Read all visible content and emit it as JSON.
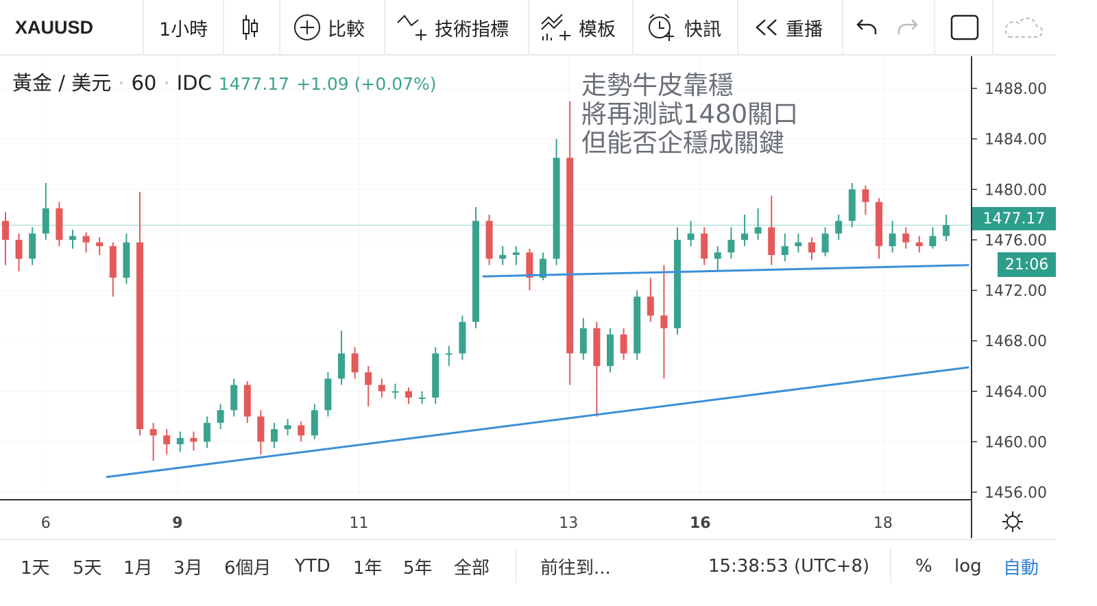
{
  "toolbar": {
    "symbol": "XAUUSD",
    "interval": "1小時",
    "chart_type_icon": "candlestick-icon",
    "compare": "比較",
    "indicators": "技術指標",
    "templates": "模板",
    "alerts": "快訊",
    "replay": "重播"
  },
  "legend": {
    "name": "黃金 / 美元",
    "interval": "60",
    "source": "IDC",
    "price": "1477.17",
    "change": "+1.09 (+0.07%)"
  },
  "annotation": [
    "走勢牛皮靠穩",
    "將再測試1480關口",
    "但能否企穩成關鍵"
  ],
  "price_label": {
    "price": "1477.17",
    "countdown": "21:06"
  },
  "bottom": {
    "ranges": [
      "1天",
      "5天",
      "1月",
      "3月",
      "6個月",
      "YTD",
      "1年",
      "5年",
      "全部"
    ],
    "goto": "前往到...",
    "clock": "15:38:53 (UTC+8)",
    "percent": "%",
    "log": "log",
    "auto": "自動"
  },
  "colors": {
    "up": "#3aa38f",
    "down": "#e45a5a",
    "trendline": "#3b8fd9",
    "accent": "#2e9e8c",
    "auto": "#2f7fd8"
  },
  "chart_data": {
    "type": "candlestick",
    "title": "",
    "ylim": [
      1456,
      1488
    ],
    "y_ticks": [
      "1488.00",
      "1484.00",
      "1480.00",
      "1476.00",
      "1472.00",
      "1468.00",
      "1464.00",
      "1460.00",
      "1456.00"
    ],
    "x_ticks": [
      {
        "label": "6",
        "bar": 3,
        "bold": false
      },
      {
        "label": "9",
        "bar": 12.8,
        "bold": true
      },
      {
        "label": "11",
        "bar": 26.3,
        "bold": false
      },
      {
        "label": "13",
        "bar": 41.9,
        "bold": false
      },
      {
        "label": "16",
        "bar": 51.7,
        "bold": true
      },
      {
        "label": "18",
        "bar": 65.3,
        "bold": false
      }
    ],
    "last_price": 1477.17,
    "candles": [
      [
        1477.5,
        1478.2,
        1474,
        1476
      ],
      [
        1476,
        1476.5,
        1473.5,
        1474.5
      ],
      [
        1474.5,
        1477,
        1474,
        1476.5
      ],
      [
        1476.5,
        1480.5,
        1476,
        1478.5
      ],
      [
        1478.5,
        1479,
        1475.5,
        1476
      ],
      [
        1476,
        1476.8,
        1475.3,
        1476.3
      ],
      [
        1476.3,
        1476.6,
        1475,
        1475.8
      ],
      [
        1475.8,
        1476.2,
        1474.8,
        1475.5
      ],
      [
        1475.5,
        1475.8,
        1471.5,
        1473
      ],
      [
        1473,
        1476.5,
        1472.5,
        1475.8
      ],
      [
        1475.8,
        1479.8,
        1460.5,
        1461
      ],
      [
        1461,
        1461.5,
        1458.5,
        1460.5
      ],
      [
        1460.5,
        1461,
        1459,
        1459.8
      ],
      [
        1459.8,
        1460.8,
        1459.2,
        1460.3
      ],
      [
        1460.3,
        1460.8,
        1459.3,
        1460
      ],
      [
        1460,
        1462,
        1459.5,
        1461.5
      ],
      [
        1461.5,
        1463,
        1461,
        1462.5
      ],
      [
        1462.5,
        1465,
        1462,
        1464.5
      ],
      [
        1464.5,
        1464.8,
        1461.5,
        1462
      ],
      [
        1462,
        1462.5,
        1459,
        1460
      ],
      [
        1460,
        1461.5,
        1459.5,
        1461
      ],
      [
        1461,
        1461.8,
        1460.5,
        1461.3
      ],
      [
        1461.3,
        1461.6,
        1460,
        1460.5
      ],
      [
        1460.5,
        1463,
        1460.2,
        1462.5
      ],
      [
        1462.5,
        1465.5,
        1462,
        1465
      ],
      [
        1465,
        1468.8,
        1464.5,
        1467
      ],
      [
        1467,
        1467.5,
        1465,
        1465.5
      ],
      [
        1465.5,
        1466,
        1462.8,
        1464.5
      ],
      [
        1464.5,
        1465,
        1463.5,
        1464
      ],
      [
        1464,
        1464.6,
        1463.4,
        1464
      ],
      [
        1464,
        1464.3,
        1463,
        1463.5
      ],
      [
        1463.5,
        1464,
        1463,
        1463.5
      ],
      [
        1463.5,
        1467.5,
        1463,
        1467
      ],
      [
        1467,
        1467.6,
        1466,
        1467
      ],
      [
        1467,
        1470,
        1466.5,
        1469.5
      ],
      [
        1469.5,
        1478.6,
        1469,
        1477.5
      ],
      [
        1477.5,
        1478,
        1474,
        1474.5
      ],
      [
        1474.5,
        1475.5,
        1474,
        1474.8
      ],
      [
        1474.8,
        1475.5,
        1474,
        1475
      ],
      [
        1475,
        1475.3,
        1472,
        1473
      ],
      [
        1473,
        1475,
        1472.8,
        1474.5
      ],
      [
        1474.5,
        1484,
        1474,
        1482.5
      ],
      [
        1482.5,
        1487,
        1464.5,
        1467
      ],
      [
        1467,
        1469.8,
        1466.5,
        1469
      ],
      [
        1469,
        1469.5,
        1462,
        1466
      ],
      [
        1466,
        1469,
        1465.5,
        1468.5
      ],
      [
        1468.5,
        1469,
        1466.5,
        1467
      ],
      [
        1467,
        1472,
        1466.5,
        1471.5
      ],
      [
        1471.5,
        1473,
        1469.5,
        1470
      ],
      [
        1470,
        1474,
        1465,
        1469
      ],
      [
        1469,
        1477,
        1468.5,
        1476
      ],
      [
        1476,
        1477.5,
        1475.5,
        1476.5
      ],
      [
        1476.5,
        1477,
        1474,
        1474.5
      ],
      [
        1474.5,
        1475.5,
        1473.5,
        1475
      ],
      [
        1475,
        1477,
        1474.5,
        1476
      ],
      [
        1476,
        1478,
        1475.5,
        1476.5
      ],
      [
        1476.5,
        1478.5,
        1476,
        1477
      ],
      [
        1477,
        1479.5,
        1474,
        1474.8
      ],
      [
        1474.8,
        1476.5,
        1474.3,
        1475.5
      ],
      [
        1475.5,
        1476.5,
        1475,
        1475.8
      ],
      [
        1475.8,
        1476.2,
        1474.4,
        1475
      ],
      [
        1475,
        1477,
        1474.7,
        1476.5
      ],
      [
        1476.5,
        1478,
        1476,
        1477.5
      ],
      [
        1477.5,
        1480.5,
        1477,
        1480
      ],
      [
        1480,
        1480.3,
        1478,
        1479
      ],
      [
        1479,
        1479.3,
        1474.5,
        1475.5
      ],
      [
        1475.5,
        1477.5,
        1475,
        1476.5
      ],
      [
        1476.5,
        1477,
        1475.3,
        1475.8
      ],
      [
        1475.8,
        1476.3,
        1475,
        1475.5
      ],
      [
        1475.5,
        1477,
        1475.3,
        1476.3
      ],
      [
        1476.3,
        1478,
        1475.9,
        1477.17
      ]
    ],
    "trendlines": [
      {
        "from": {
          "bar": 7.5,
          "price": 1457.2
        },
        "to": {
          "bar": 71.7,
          "price": 1465.9
        }
      },
      {
        "from": {
          "bar": 35.5,
          "price": 1473.1
        },
        "to": {
          "bar": 71.7,
          "price": 1474.0
        }
      }
    ]
  }
}
